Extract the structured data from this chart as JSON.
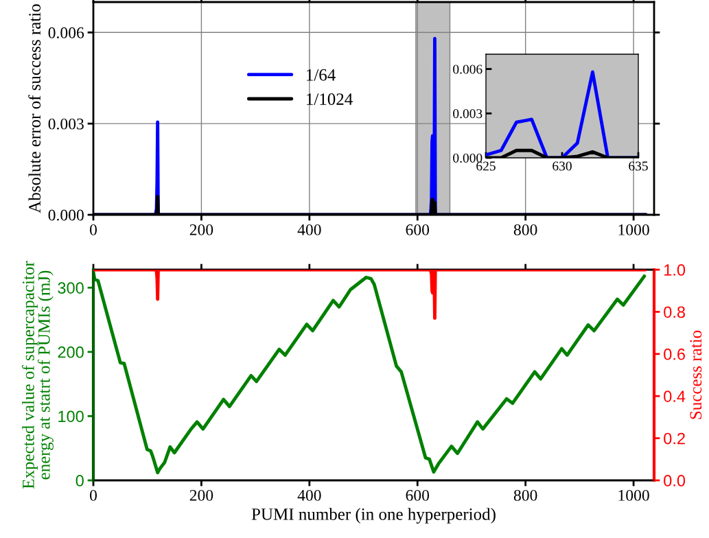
{
  "chart_data": [
    {
      "type": "line",
      "ylabel": "Absolute error of success ratio",
      "xlim": [
        0,
        1038
      ],
      "ylim": [
        0,
        0.007
      ],
      "xticks": [
        0,
        200,
        400,
        600,
        800,
        1000
      ],
      "yticks": [
        {
          "value": 0,
          "label": "0.000"
        },
        {
          "value": 0.003,
          "label": "0.003"
        },
        {
          "value": 0.006,
          "label": "0.006"
        }
      ],
      "grid": true,
      "legend": "top",
      "line_style": "solid",
      "marker": "none",
      "bands": [
        {
          "axis": "x",
          "from": 597,
          "to": 660,
          "color": "#c0c0c0"
        }
      ],
      "series": [
        {
          "name": "1/64",
          "color": "#0000ff",
          "x": [
            0,
            115,
            117,
            118,
            119,
            120,
            122,
            624,
            625,
            626,
            627,
            628,
            629,
            630,
            631,
            632,
            633,
            1023
          ],
          "values": [
            0,
            0,
            0.0002,
            0.0011,
            0.00305,
            0,
            0,
            0,
            0.0002,
            0.0005,
            0.0024,
            0.0026,
            0,
            0,
            0.001,
            0.0058,
            0,
            0
          ]
        },
        {
          "name": "1/1024",
          "color": "#000000",
          "x": [
            0,
            115,
            117,
            118,
            119,
            120,
            122,
            624,
            625,
            626,
            627,
            628,
            629,
            630,
            631,
            632,
            633,
            1023
          ],
          "values": [
            0,
            0,
            0,
            0.0002,
            0.0006,
            0,
            0,
            0,
            0,
            0,
            0.0005,
            0.0005,
            0,
            0,
            0.0001,
            0.0004,
            0,
            0
          ]
        }
      ]
    },
    {
      "type": "line",
      "xlim": [
        625,
        635
      ],
      "ylim": [
        0,
        0.007
      ],
      "xticks": [
        625,
        630,
        635
      ],
      "yticks": [
        {
          "value": 0,
          "label": "0.000"
        },
        {
          "value": 0.003,
          "label": "0.003"
        },
        {
          "value": 0.006,
          "label": "0.006"
        }
      ],
      "line_style": "solid",
      "marker": "none",
      "series": [
        {
          "color": "#0000ff",
          "x": [
            625,
            626,
            627,
            628,
            629,
            630,
            631,
            632,
            633,
            634,
            635
          ],
          "values": [
            0.0002,
            0.0005,
            0.0024,
            0.0026,
            0,
            0,
            0.001,
            0.0058,
            0,
            0,
            0
          ]
        },
        {
          "color": "#000000",
          "x": [
            625,
            626,
            627,
            628,
            629,
            630,
            631,
            632,
            633,
            634,
            635
          ],
          "values": [
            0,
            0,
            0.0005,
            0.0005,
            0,
            0,
            0.0001,
            0.0004,
            0,
            0,
            0
          ]
        }
      ]
    },
    {
      "type": "line",
      "xlabel": "PUMI number (in one hyperperiod)",
      "ylabel": "Expected value of supercapacitor\nenergy at statrt of PUMIs (mJ)",
      "y2label": "Success ratio",
      "xlim": [
        0,
        1038
      ],
      "ylim": [
        0,
        328
      ],
      "y2lim": [
        0,
        1.0
      ],
      "xticks": [
        0,
        200,
        400,
        600,
        800,
        1000
      ],
      "yticks": [
        0,
        100,
        200,
        300
      ],
      "y2ticks": [
        {
          "value": 0,
          "label": "0.0"
        },
        {
          "value": 0.2,
          "label": "0.2"
        },
        {
          "value": 0.4,
          "label": "0.4"
        },
        {
          "value": 0.6,
          "label": "0.6"
        },
        {
          "value": 0.8,
          "label": "0.8"
        },
        {
          "value": 1.0,
          "label": "1.0"
        }
      ],
      "line_style": "solid",
      "marker": "none",
      "series": [
        {
          "color": "#008000",
          "x": [
            0,
            2.5,
            8.6,
            50,
            57,
            99.6,
            106,
            110,
            119,
            123,
            132,
            142,
            150,
            181,
            192,
            203,
            241,
            252,
            292,
            302,
            344,
            355,
            395,
            406,
            444,
            455,
            476,
            505,
            514,
            520,
            561,
            570,
            615,
            622,
            630,
            639,
            663,
            674,
            711,
            721,
            765,
            776,
            817,
            828,
            867,
            877,
            916,
            927,
            970,
            981,
            1020
          ],
          "values": [
            324,
            313,
            311,
            183,
            182,
            48,
            46,
            37,
            12,
            18,
            28,
            52,
            43,
            80,
            91,
            80,
            126,
            115,
            163,
            154,
            204,
            195,
            243,
            233,
            280,
            270,
            297,
            316,
            314,
            305,
            178,
            169,
            35,
            33,
            13,
            26,
            53,
            42,
            91,
            80,
            127,
            120,
            169,
            158,
            205,
            195,
            242,
            233,
            282,
            273,
            318
          ]
        },
        {
          "color": "#ff0000",
          "axis": "y2",
          "x": [
            0,
            116,
            117,
            118,
            119,
            120,
            121,
            624,
            625,
            626,
            627,
            628,
            629,
            630,
            631,
            632,
            633,
            1022
          ],
          "values": [
            1.0,
            1.0,
            0.99,
            0.96,
            0.86,
            1.0,
            1.0,
            1.0,
            0.99,
            0.98,
            0.9,
            0.89,
            1.0,
            1.0,
            0.96,
            0.77,
            1.0,
            1.0
          ]
        }
      ]
    }
  ]
}
